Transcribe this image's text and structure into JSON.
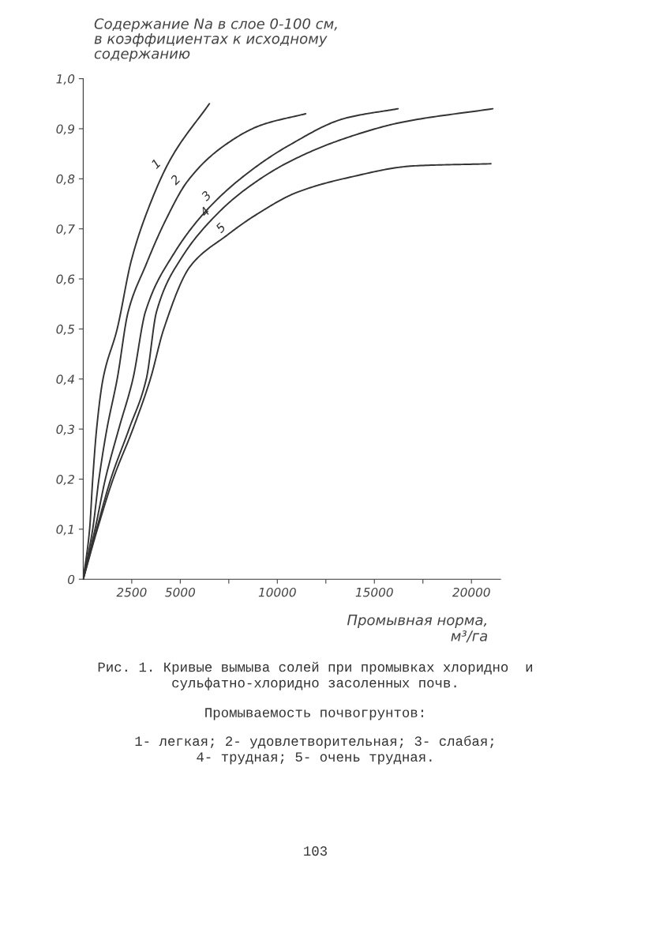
{
  "chart_data": {
    "type": "line",
    "ylabel": "Содержание Na в слое 0-100 см,\nв коэффициентах к исходному\nсодержанию",
    "xlabel": "Промывная норма,\nм³/га",
    "xlim": [
      0,
      21500
    ],
    "ylim": [
      0,
      1.0
    ],
    "xticks": [
      2500,
      5000,
      {
        "value": 7500,
        "label": null
      },
      10000,
      {
        "value": 12500,
        "label": null
      },
      15000,
      {
        "value": 17500,
        "label": null
      },
      20000
    ],
    "yticks": [
      {
        "value": 0,
        "label": "0"
      },
      {
        "value": 0.1,
        "label": "0,1"
      },
      {
        "value": 0.2,
        "label": "0,2"
      },
      {
        "value": 0.3,
        "label": "0,3"
      },
      {
        "value": 0.4,
        "label": "0,4"
      },
      {
        "value": 0.5,
        "label": "0,5"
      },
      {
        "value": 0.6,
        "label": "0,6"
      },
      {
        "value": 0.7,
        "label": "0,7"
      },
      {
        "value": 0.8,
        "label": "0,8"
      },
      {
        "value": 0.9,
        "label": "0,9"
      },
      {
        "value": 1.0,
        "label": "1,0"
      }
    ],
    "grid": false,
    "marker": "none",
    "line_style": "solid",
    "series": [
      {
        "name": "1",
        "color": "#333333",
        "x": [
          0,
          330,
          490,
          690,
          1020,
          1750,
          2480,
          3330,
          4510,
          6500
        ],
        "values": [
          0,
          0.1,
          0.2,
          0.3,
          0.4,
          0.5,
          0.637,
          0.738,
          0.84,
          0.95
        ]
      },
      {
        "name": "2",
        "color": "#333333",
        "x": [
          0,
          490,
          810,
          1220,
          1750,
          2320,
          3210,
          4230,
          5370,
          7110,
          9150,
          11460
        ],
        "values": [
          0,
          0.1,
          0.2,
          0.3,
          0.4,
          0.535,
          0.626,
          0.716,
          0.795,
          0.862,
          0.907,
          0.93
        ]
      },
      {
        "name": "3",
        "color": "#333333",
        "x": [
          0,
          610,
          1140,
          1830,
          2560,
          3210,
          4630,
          6260,
          8290,
          10610,
          13500,
          16220
        ],
        "values": [
          0,
          0.1,
          0.2,
          0.3,
          0.4,
          0.535,
          0.648,
          0.733,
          0.806,
          0.867,
          0.921,
          0.94
        ]
      },
      {
        "name": "4",
        "color": "#333333",
        "x": [
          0,
          690,
          1420,
          2360,
          3250,
          3780,
          5080,
          6830,
          8290,
          10610,
          13500,
          16420,
          21100
        ],
        "values": [
          0,
          0.1,
          0.2,
          0.3,
          0.4,
          0.535,
          0.643,
          0.727,
          0.777,
          0.834,
          0.881,
          0.913,
          0.94
        ]
      },
      {
        "name": "5",
        "color": "#333333",
        "x": [
          0,
          730,
          1540,
          2560,
          3460,
          4150,
          5530,
          7400,
          8860,
          11020,
          13500,
          17110,
          21000
        ],
        "values": [
          0,
          0.1,
          0.2,
          0.3,
          0.4,
          0.5,
          0.626,
          0.687,
          0.727,
          0.773,
          0.801,
          0.826,
          0.83
        ]
      }
    ],
    "annotations": [
      "Рис. 1. Кривые вымыва солей при промывках хлоридно  и\nсульфатно-хлоридно засоленных почв.",
      "Промываемость почвогрунтов:",
      "1- легкая; 2- удовлетворительная; 3- слабая;\n4- трудная; 5- очень трудная.",
      "103"
    ]
  }
}
